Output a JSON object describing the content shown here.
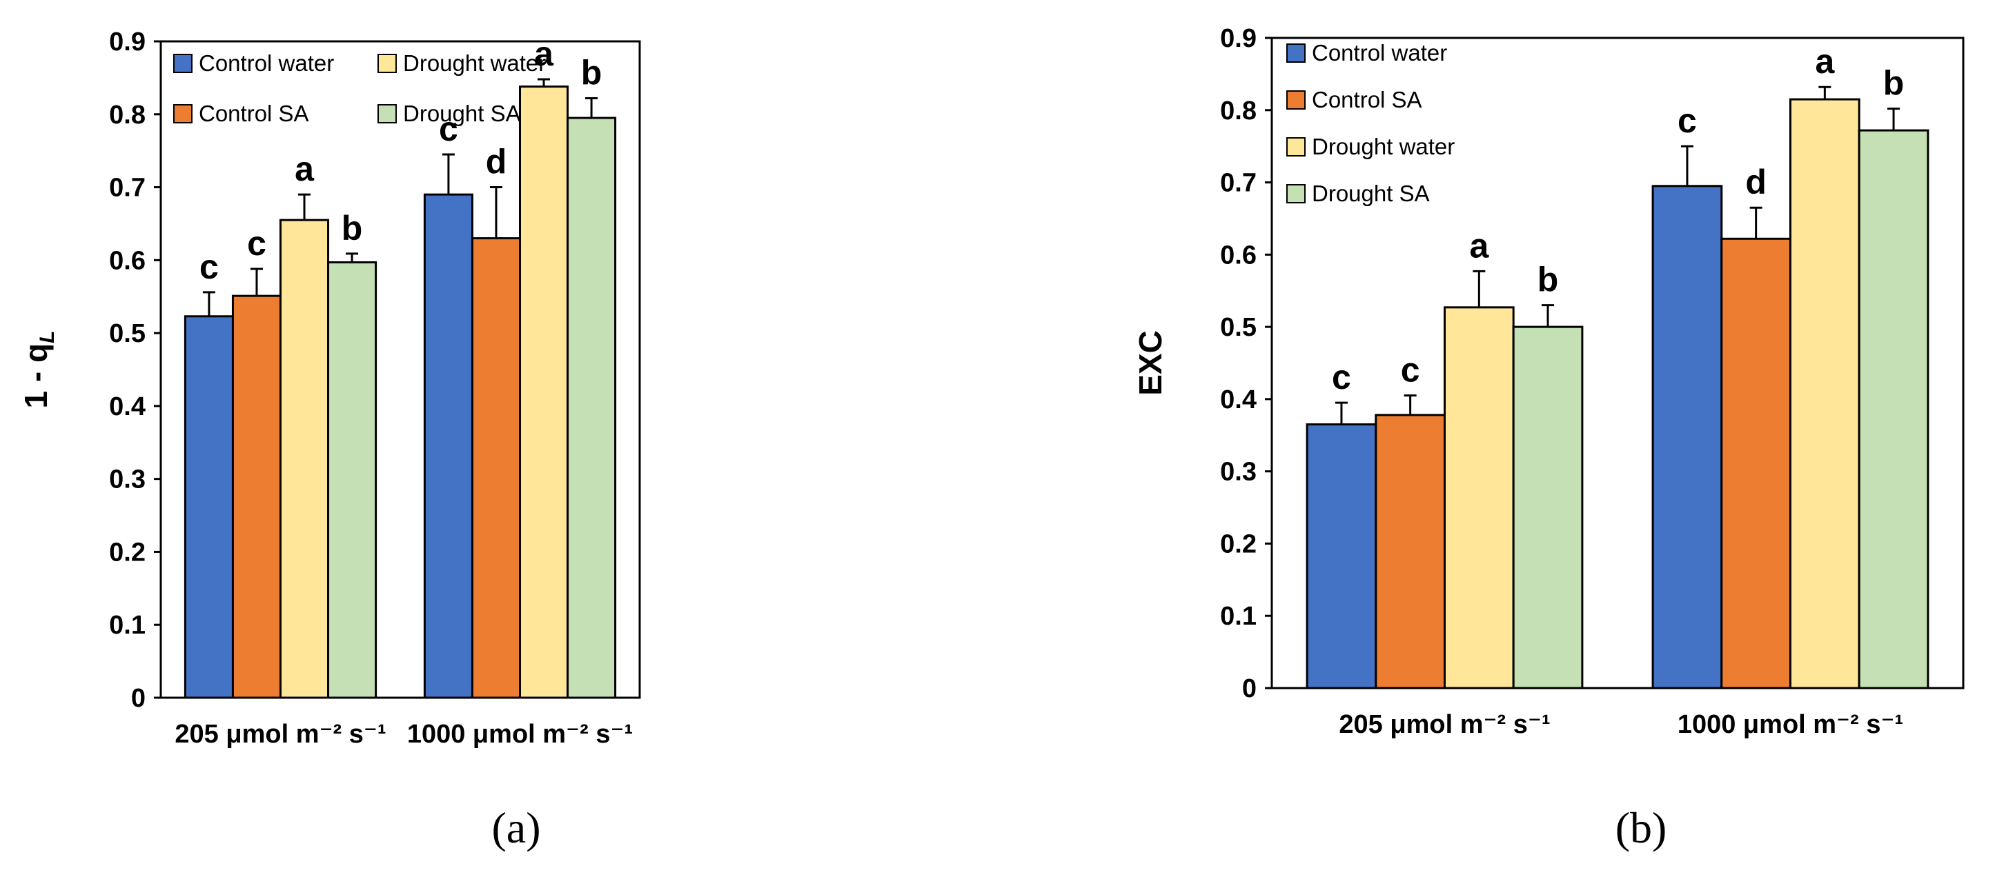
{
  "colors": {
    "control_water": "#4472C4",
    "control_sa": "#ED7D31",
    "drought_water": "#FFE699",
    "drought_sa": "#C5E0B4"
  },
  "chart_data": [
    {
      "type": "bar",
      "panel_label": "(a)",
      "categories": [
        "205 μmol m⁻² s⁻¹",
        "1000 μmol m⁻² s⁻¹"
      ],
      "ylabel_main": "1 - q",
      "ylabel_sub": "L",
      "xlabel": "",
      "ylim": [
        0,
        0.9
      ],
      "yticks": [
        "0",
        "0.1",
        "0.2",
        "0.3",
        "0.4",
        "0.5",
        "0.6",
        "0.7",
        "0.8",
        "0.9"
      ],
      "grid": false,
      "legend_position": "top-left",
      "legend_layout": "two-columns",
      "legend_order": [
        "Control water",
        "Drought water",
        "Control SA",
        "Drought SA"
      ],
      "series": [
        {
          "name": "Control water",
          "color_key": "control_water",
          "values": [
            0.523,
            0.69
          ],
          "errors": [
            0.033,
            0.055
          ],
          "letters": [
            "c",
            "c"
          ]
        },
        {
          "name": "Control SA",
          "color_key": "control_sa",
          "values": [
            0.551,
            0.63
          ],
          "errors": [
            0.037,
            0.07
          ],
          "letters": [
            "c",
            "d"
          ]
        },
        {
          "name": "Drought water",
          "color_key": "drought_water",
          "values": [
            0.655,
            0.838
          ],
          "errors": [
            0.035,
            0.01
          ],
          "letters": [
            "a",
            "a"
          ]
        },
        {
          "name": "Drought SA",
          "color_key": "drought_sa",
          "values": [
            0.597,
            0.795
          ],
          "errors": [
            0.012,
            0.027
          ],
          "letters": [
            "b",
            "b"
          ]
        }
      ]
    },
    {
      "type": "bar",
      "panel_label": "(b)",
      "categories": [
        "205 μmol m⁻² s⁻¹",
        "1000 μmol m⁻² s⁻¹"
      ],
      "ylabel_main": "EXC",
      "ylabel_sub": "",
      "xlabel": "",
      "ylim": [
        0,
        0.9
      ],
      "yticks": [
        "0",
        "0.1",
        "0.2",
        "0.3",
        "0.4",
        "0.5",
        "0.6",
        "0.7",
        "0.8",
        "0.9"
      ],
      "grid": false,
      "legend_position": "top-left",
      "legend_layout": "one-column",
      "legend_order": [
        "Control water",
        "Control SA",
        "Drought water",
        "Drought SA"
      ],
      "series": [
        {
          "name": "Control water",
          "color_key": "control_water",
          "values": [
            0.365,
            0.695
          ],
          "errors": [
            0.03,
            0.055
          ],
          "letters": [
            "c",
            "c"
          ]
        },
        {
          "name": "Control SA",
          "color_key": "control_sa",
          "values": [
            0.378,
            0.622
          ],
          "errors": [
            0.027,
            0.043
          ],
          "letters": [
            "c",
            "d"
          ]
        },
        {
          "name": "Drought water",
          "color_key": "drought_water",
          "values": [
            0.527,
            0.815
          ],
          "errors": [
            0.05,
            0.017
          ],
          "letters": [
            "a",
            "a"
          ]
        },
        {
          "name": "Drought SA",
          "color_key": "drought_sa",
          "values": [
            0.5,
            0.772
          ],
          "errors": [
            0.03,
            0.03
          ],
          "letters": [
            "b",
            "b"
          ]
        }
      ]
    }
  ]
}
